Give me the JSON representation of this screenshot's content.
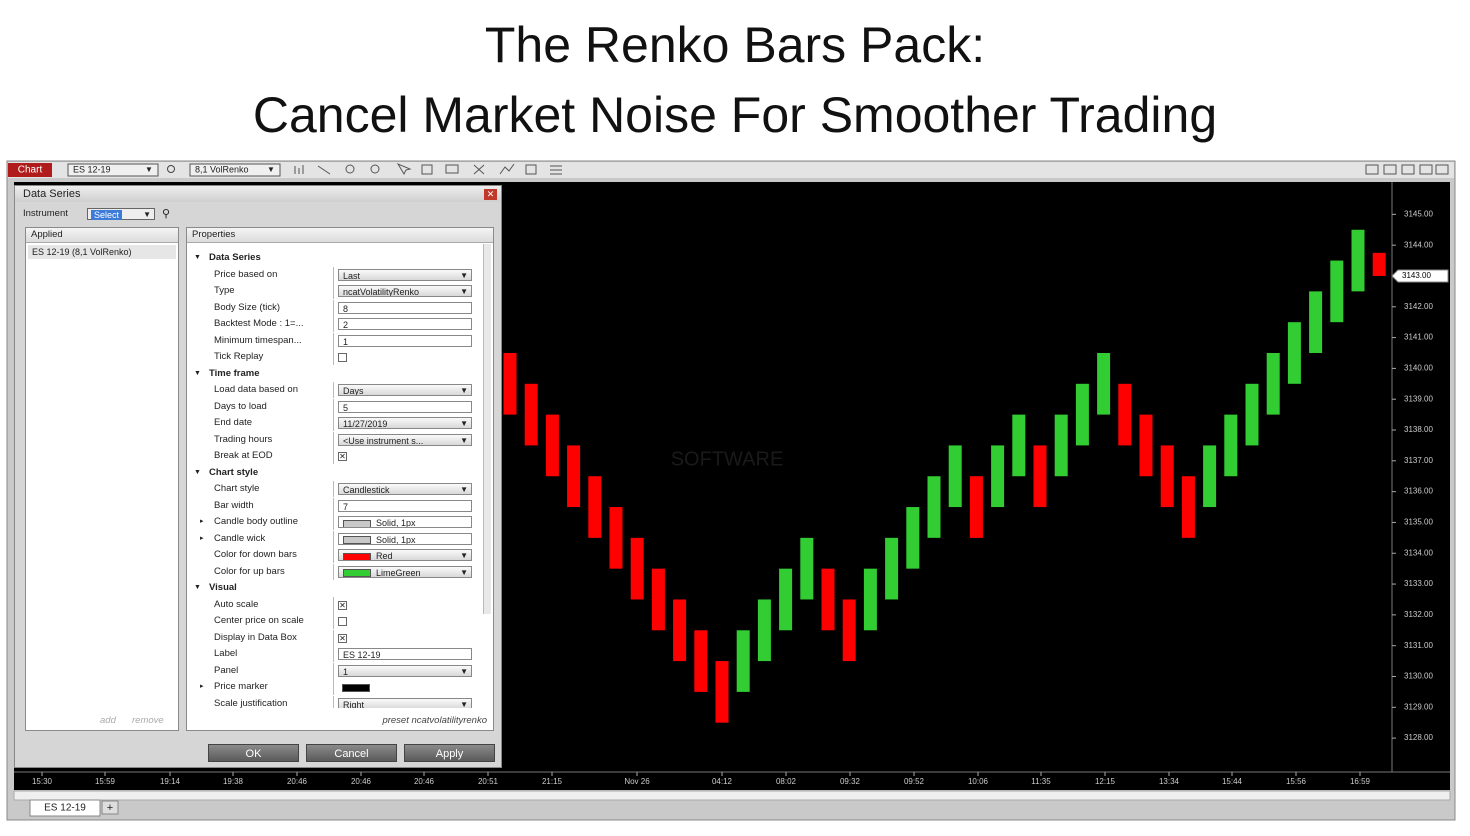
{
  "header": {
    "title_line1": "The Renko Bars Pack:",
    "title_line2": "Cancel Market Noise For Smoother Trading"
  },
  "toolbar": {
    "tab": "Chart",
    "instrument": "ES 12-19",
    "bar_type": "8,1 VolRenko"
  },
  "dialog": {
    "title": "Data Series",
    "instrument_label": "Instrument",
    "instrument_value": "Select",
    "applied_header": "Applied",
    "applied_item": "ES 12-19 (8,1 VolRenko)",
    "add": "add",
    "remove": "remove",
    "properties_header": "Properties",
    "sections": [
      {
        "name": "Data Series",
        "rows": [
          {
            "label": "Price based on",
            "value": "Last",
            "dropdown": true
          },
          {
            "label": "Type",
            "value": "ncatVolatilityRenko",
            "dropdown": true
          },
          {
            "label": "Body Size (tick)",
            "value": "8"
          },
          {
            "label": "Backtest Mode : 1=...",
            "value": "2"
          },
          {
            "label": "Minimum timespan...",
            "value": "1"
          },
          {
            "label": "Tick Replay",
            "checked": false
          }
        ]
      },
      {
        "name": "Time frame",
        "rows": [
          {
            "label": "Load data based on",
            "value": "Days",
            "dropdown": true
          },
          {
            "label": "Days to load",
            "value": "5"
          },
          {
            "label": "End date",
            "value": "11/27/2019",
            "dropdown": true
          },
          {
            "label": "Trading hours",
            "value": "<Use instrument s...",
            "dropdown": true
          },
          {
            "label": "Break at EOD",
            "checked": true
          }
        ]
      },
      {
        "name": "Chart style",
        "rows": [
          {
            "label": "Chart style",
            "value": "Candlestick",
            "dropdown": true
          },
          {
            "label": "Bar width",
            "value": "7"
          },
          {
            "label": "Candle body outline",
            "value": "Solid, 1px",
            "swatch": "#c8c8c8",
            "expand": true
          },
          {
            "label": "Candle wick",
            "value": "Solid, 1px",
            "swatch": "#c8c8c8",
            "expand": true
          },
          {
            "label": "Color for down bars",
            "value": "Red",
            "swatch": "#ff0000",
            "dropdown": true
          },
          {
            "label": "Color for up bars",
            "value": "LimeGreen",
            "swatch": "#32cd32",
            "dropdown": true
          }
        ]
      },
      {
        "name": "Visual",
        "rows": [
          {
            "label": "Auto scale",
            "checked": true
          },
          {
            "label": "Center price on scale",
            "checked": false
          },
          {
            "label": "Display in Data Box",
            "checked": true
          },
          {
            "label": "Label",
            "value": "ES 12-19"
          },
          {
            "label": "Panel",
            "value": "1",
            "dropdown": true
          },
          {
            "label": "Price marker",
            "swatch": "#000000",
            "expand": true
          },
          {
            "label": "Scale justification",
            "value": "Right",
            "dropdown": true
          }
        ]
      }
    ],
    "preset": "preset ncatvolatilityrenko",
    "buttons": [
      "OK",
      "Cancel",
      "Apply"
    ]
  },
  "watermark": "SOFTWARE",
  "bottom_tab": "ES 12-19",
  "chart_data": {
    "type": "candlestick",
    "open": [
      3140.5,
      3139.5,
      3138.5,
      3137.5,
      3136.5,
      3135.5,
      3134.5,
      3133.5,
      3132.5,
      3131.5,
      3130.5,
      3129.5,
      3130.5,
      3131.5,
      3132.5,
      3133.5,
      3132.5,
      3131.5,
      3132.5,
      3133.5,
      3134.5,
      3135.5,
      3136.5,
      3135.5,
      3136.5,
      3137.5,
      3136.5,
      3137.5,
      3138.5,
      3139.5,
      3138.5,
      3137.5,
      3136.5,
      3135.5,
      3136.5,
      3137.5,
      3138.5,
      3139.5,
      3140.5,
      3141.5,
      3142.5,
      3143.75
    ],
    "close": [
      3138.5,
      3137.5,
      3136.5,
      3135.5,
      3134.5,
      3133.5,
      3132.5,
      3131.5,
      3130.5,
      3129.5,
      3128.5,
      3131.5,
      3132.5,
      3133.5,
      3134.5,
      3131.5,
      3130.5,
      3133.5,
      3134.5,
      3135.5,
      3136.5,
      3137.5,
      3134.5,
      3137.5,
      3138.5,
      3135.5,
      3138.5,
      3139.5,
      3140.5,
      3137.5,
      3136.5,
      3135.5,
      3134.5,
      3137.5,
      3138.5,
      3139.5,
      3140.5,
      3141.5,
      3142.5,
      3143.5,
      3144.5,
      3143
    ],
    "up_color": "#32cd32",
    "down_color": "#ff0000",
    "ylim": [
      3126.9,
      3146.05
    ],
    "yticks": [
      {
        "value": 3145,
        "label": "3145.00"
      },
      {
        "value": 3144,
        "label": "3144.00"
      },
      {
        "value": 3143,
        "label": "3143.00"
      },
      {
        "value": 3142,
        "label": "3142.00"
      },
      {
        "value": 3141,
        "label": "3141.00"
      },
      {
        "value": 3140,
        "label": "3140.00"
      },
      {
        "value": 3139,
        "label": "3139.00"
      },
      {
        "value": 3138,
        "label": "3138.00"
      },
      {
        "value": 3137,
        "label": "3137.00"
      },
      {
        "value": 3136,
        "label": "3136.00"
      },
      {
        "value": 3135,
        "label": "3135.00"
      },
      {
        "value": 3134,
        "label": "3134.00"
      },
      {
        "value": 3133,
        "label": "3133.00"
      },
      {
        "value": 3132,
        "label": "3132.00"
      },
      {
        "value": 3131,
        "label": "3131.00"
      },
      {
        "value": 3130,
        "label": "3130.00"
      },
      {
        "value": 3129,
        "label": "3129.00"
      },
      {
        "value": 3128,
        "label": "3128.00"
      }
    ],
    "last_price_label": "3143.00",
    "time_labels": [
      "15:30",
      "15:59",
      "19:14",
      "19:38",
      "20:46",
      "20:46",
      "20:46",
      "20:51",
      "21:15",
      "Nov 26",
      "04:12",
      "08:02",
      "09:32",
      "09:52",
      "10:06",
      "11:35",
      "12:15",
      "13:34",
      "15:44",
      "15:56",
      "16:59"
    ]
  }
}
